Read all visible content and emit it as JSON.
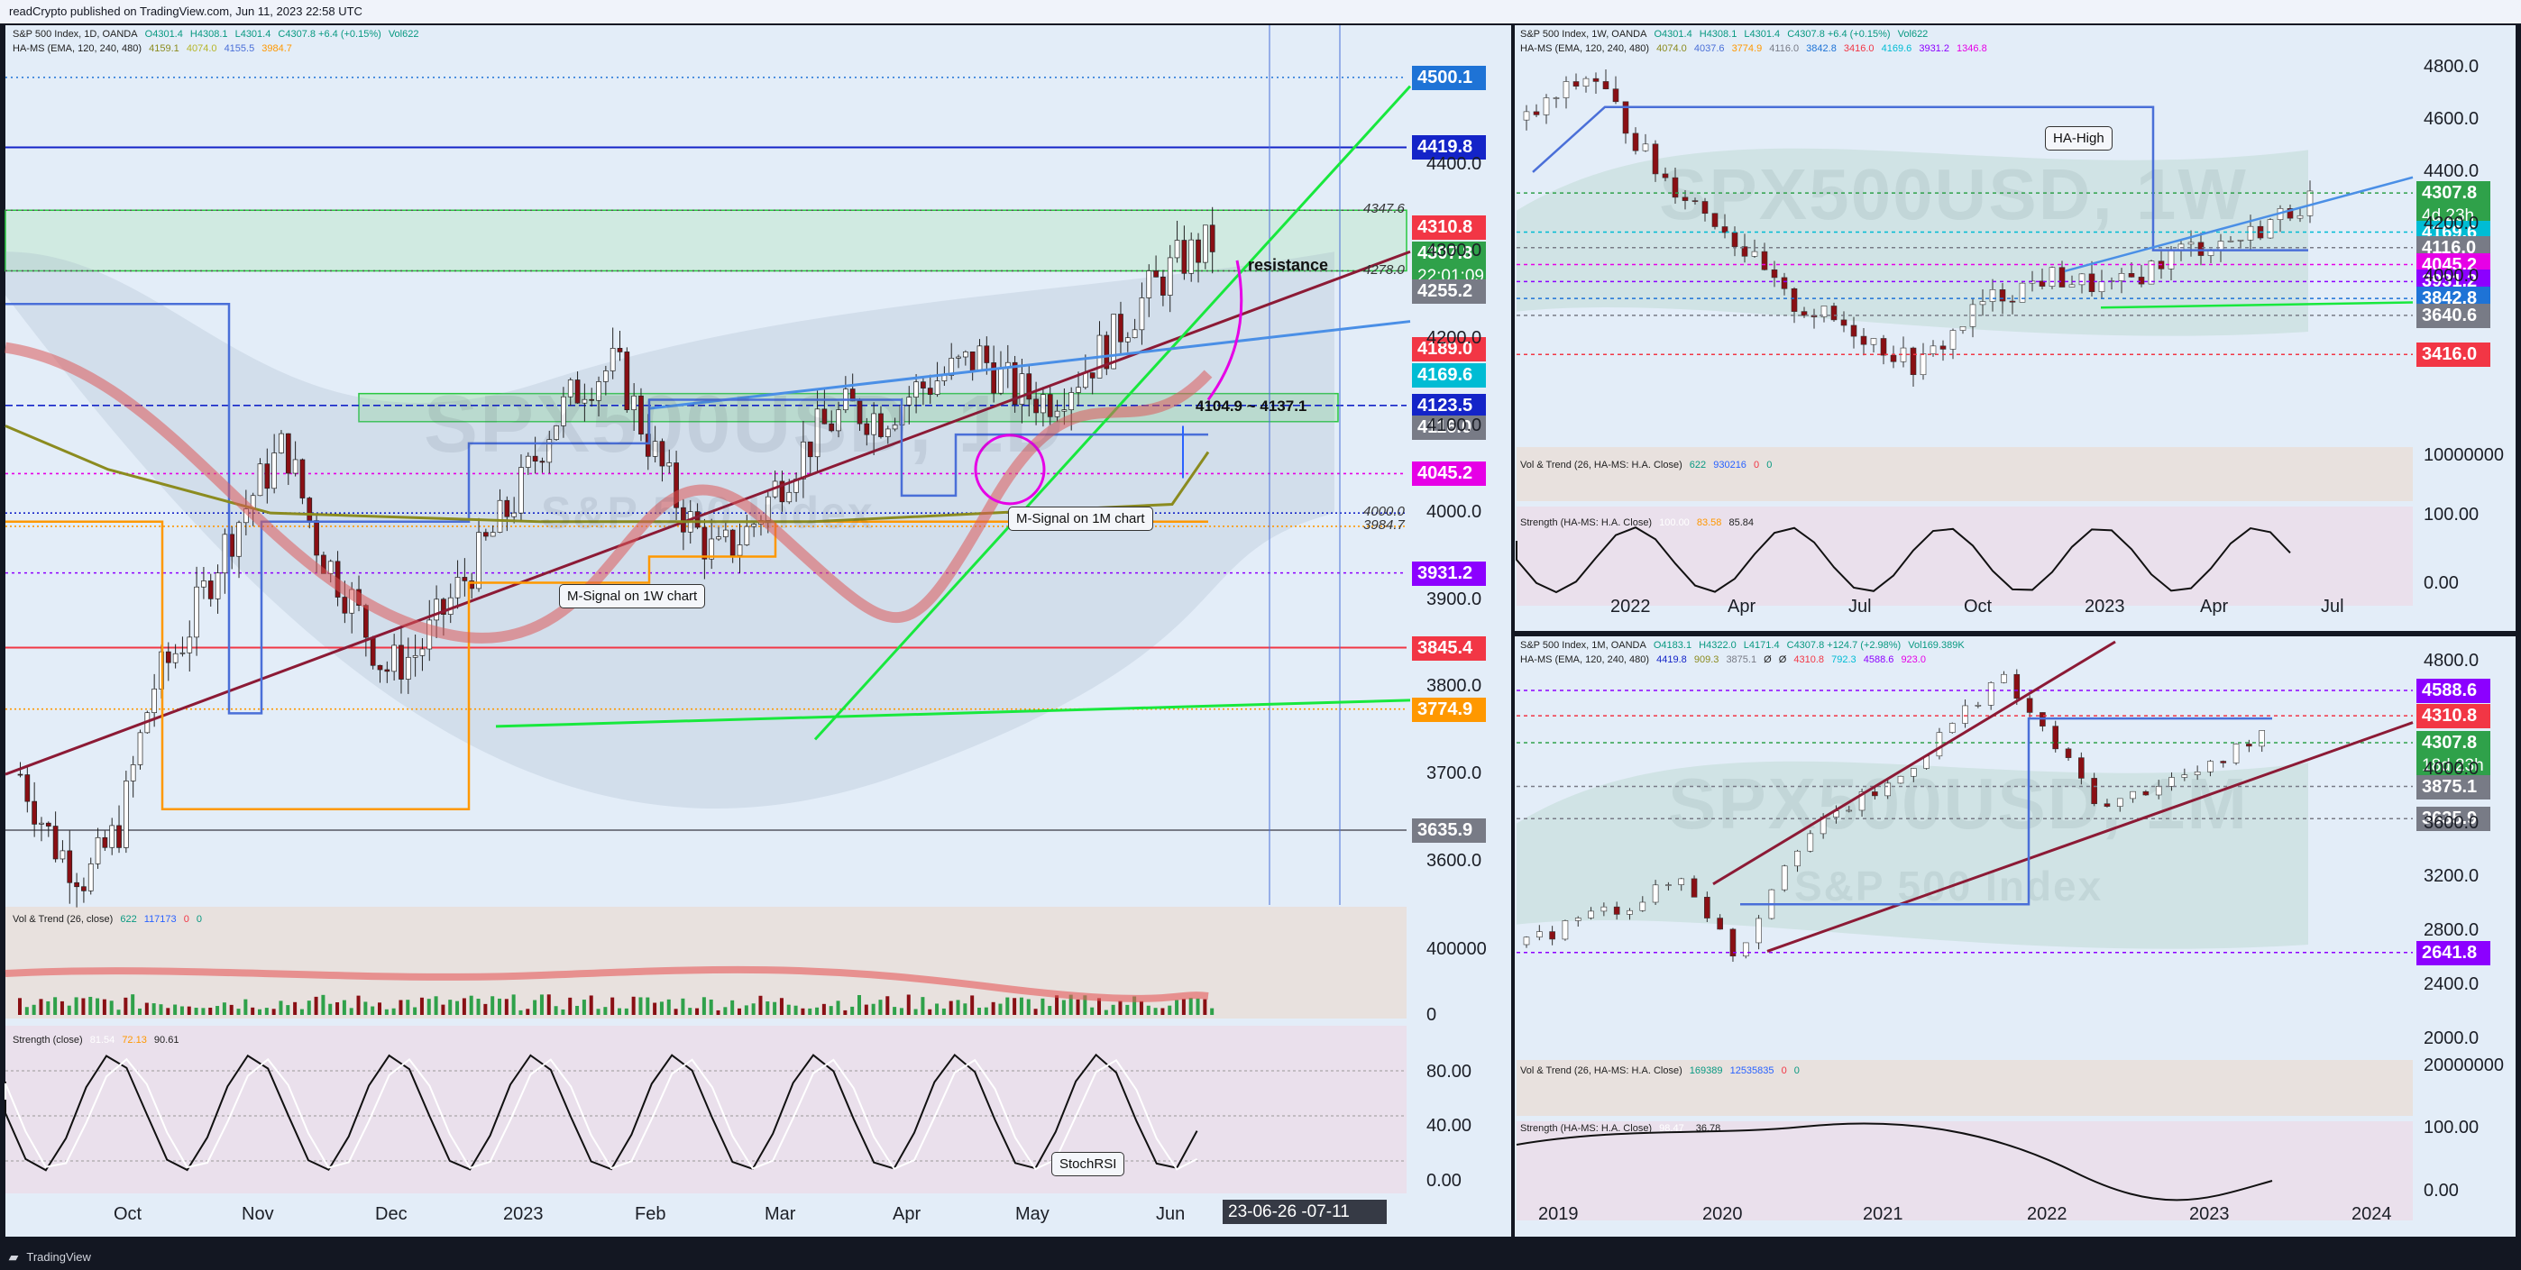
{
  "header": {
    "text": "readCrypto published on TradingView.com, Jun 11, 2023 22:58 UTC"
  },
  "footer": {
    "brand": "TradingView"
  },
  "colors": {
    "bg": "#e3edf8",
    "up": "#ffffff",
    "down": "#8a0f14",
    "green": "#18e83d",
    "maroon": "#8c1a35",
    "blue": "#4a8fe6"
  },
  "chart_data": [
    {
      "type": "candlestick",
      "name": "S&P 500 Index, 1D, OANDA",
      "legend1": [
        "S&P 500 Index, 1D, OANDA",
        "O4301.4",
        "H4308.1",
        "L4301.4",
        "C4307.8 +6.4 (+0.15%)",
        "Vol622"
      ],
      "legend2": [
        "HA-MS (EMA, 120, 240, 480)",
        "4159.1",
        "4074.0",
        "4155.5",
        "3984.7"
      ],
      "watermark": "SPX500USD, 1D",
      "watermark2": "S&P 500 Index",
      "yticks": [
        3600,
        3700,
        3800,
        3900,
        4000,
        4100,
        4200,
        4300,
        4400
      ],
      "ylim": [
        3550,
        4560
      ],
      "xticks": [
        "Oct",
        "Nov",
        "Dec",
        "2023",
        "Feb",
        "Mar",
        "Apr",
        "May",
        "Jun"
      ],
      "x_range_label": "23-06-26   -07-11",
      "price_tags": [
        {
          "v": "4500.1",
          "c": "#1e73d6",
          "y": 4500.1
        },
        {
          "v": "4419.8",
          "c": "#1424c8",
          "y": 4419.8
        },
        {
          "v": "4310.8",
          "c": "#f23645",
          "y": 4328
        },
        {
          "v": "4307.8",
          "c": "#2fa14a",
          "y": 4298,
          "sub": "22:01:09"
        },
        {
          "v": "4255.2",
          "c": "#787b86",
          "y": 4255.2
        },
        {
          "v": "4189.0",
          "c": "#f23645",
          "y": 4189
        },
        {
          "v": "4169.6",
          "c": "#00bcd4",
          "y": 4158
        },
        {
          "v": "4123.5",
          "c": "#1424c8",
          "y": 4123.5
        },
        {
          "v": "4116.0",
          "c": "#787b86",
          "y": 4098
        },
        {
          "v": "4045.2",
          "c": "#e600e6",
          "y": 4045.2
        },
        {
          "v": "3931.2",
          "c": "#8c00ff",
          "y": 3931.2
        },
        {
          "v": "3845.4",
          "c": "#f23645",
          "y": 3845.4
        },
        {
          "v": "3774.9",
          "c": "#ff9800",
          "y": 3774.9
        },
        {
          "v": "3635.9",
          "c": "#787b86",
          "y": 3635.9
        }
      ],
      "levels": [
        {
          "y": 4500.1,
          "c": "#1e73d6",
          "dash": "2,4",
          "label": ""
        },
        {
          "y": 4419.8,
          "c": "#1424c8",
          "dash": "",
          "label": ""
        },
        {
          "y": 4347.6,
          "c": "#555",
          "dash": "2,4",
          "label": "4347.6"
        },
        {
          "y": 4278.0,
          "c": "#555",
          "dash": "2,4",
          "label": "4278.0"
        },
        {
          "y": 4123.5,
          "c": "#1424c8",
          "dash": "8,4",
          "label": ""
        },
        {
          "y": 4045.2,
          "c": "#e600e6",
          "dash": "3,4",
          "label": ""
        },
        {
          "y": 4000.0,
          "c": "#1424c8",
          "dash": "2,3",
          "label": "4000.0"
        },
        {
          "y": 3984.7,
          "c": "#ff9800",
          "dash": "2,3",
          "label": "3984.7"
        },
        {
          "y": 3931.2,
          "c": "#8c00ff",
          "dash": "3,4",
          "label": ""
        },
        {
          "y": 3845.4,
          "c": "#f23645",
          "dash": "",
          "label": ""
        },
        {
          "y": 3774.9,
          "c": "#ff9800",
          "dash": "2,3",
          "label": ""
        },
        {
          "y": 3635.9,
          "c": "#787b86",
          "dash": "",
          "label": ""
        }
      ],
      "annotations": {
        "resistance": "resistance",
        "range": "4104.9 ~ 4137.1",
        "m1w": "M-Signal on 1W chart",
        "m1m": "M-Signal on 1M chart",
        "stoch": "StochRSI"
      },
      "vol_legend": [
        "Vol & Trend (26, close)",
        "622",
        "117173",
        "0",
        "0"
      ],
      "vol_ticks": [
        "400000",
        "0"
      ],
      "strength_legend": [
        "Strength (close)",
        "81.54",
        "72.13",
        "90.61"
      ],
      "strength_ticks": [
        "80.00",
        "40.00",
        "0.00"
      ]
    },
    {
      "type": "candlestick",
      "name": "S&P 500 Index, 1W, OANDA",
      "legend1": [
        "S&P 500 Index, 1W, OANDA",
        "O4301.4",
        "H4308.1",
        "L4301.4",
        "C4307.8 +6.4 (+0.15%)",
        "Vol622"
      ],
      "legend2": [
        "HA-MS (EMA, 120, 240, 480)",
        "4074.0",
        "4037.6",
        "3774.9",
        "4116.0",
        "3842.8",
        "3416.0",
        "4169.6",
        "3931.2",
        "1346.8"
      ],
      "watermark": "SPX500USD, 1W",
      "yticks": [
        4000,
        4200,
        4400,
        4600,
        4800
      ],
      "ylim": [
        3400,
        4950
      ],
      "xticks": [
        "2022",
        "Apr",
        "Jul",
        "Oct",
        "2023",
        "Apr",
        "Jul"
      ],
      "price_tags": [
        {
          "v": "4307.8",
          "c": "#2fa14a",
          "y": 4320,
          "sub": "4d 23h"
        },
        {
          "v": "4169.6",
          "c": "#00bcd4",
          "y": 4169.6
        },
        {
          "v": "4116.0",
          "c": "#787b86",
          "y": 4110
        },
        {
          "v": "4045.2",
          "c": "#e600e6",
          "y": 4045.2
        },
        {
          "v": "3931.2",
          "c": "#8c00ff",
          "y": 3980
        },
        {
          "v": "3842.8",
          "c": "#1e73d6",
          "y": 3915
        },
        {
          "v": "3640.6",
          "c": "#787b86",
          "y": 3850
        },
        {
          "v": "3416.0",
          "c": "#f23645",
          "y": 3700
        }
      ],
      "annotations": {
        "hahigh": "HA-High"
      },
      "vol_legend": [
        "Vol & Trend (26, HA-MS: H.A. Close)",
        "622",
        "930216",
        "0",
        "0"
      ],
      "vol_ticks": [
        "10000000"
      ],
      "strength_legend": [
        "Strength (HA-MS: H.A. Close)",
        "100.00",
        "83.58",
        "85.84"
      ],
      "strength_ticks": [
        "100.00",
        "0.00"
      ]
    },
    {
      "type": "candlestick",
      "name": "S&P 500 Index, 1M, OANDA",
      "legend1": [
        "S&P 500 Index, 1M, OANDA",
        "O4183.1",
        "H4322.0",
        "L4171.4",
        "C4307.8 +124.7 (+2.98%)",
        "Vol169.389K"
      ],
      "legend2": [
        "HA-MS (EMA, 120, 240, 480)",
        "4419.8",
        "909.3",
        "3875.1",
        "Ø",
        "Ø",
        "4310.8",
        "792.3",
        "4588.6",
        "923.0"
      ],
      "watermark": "SPX500USD, 1M",
      "watermark2": "S&P 500 Index",
      "yticks": [
        2000,
        2400,
        2800,
        3200,
        3600,
        4000,
        4800
      ],
      "ylim": [
        1950,
        4950
      ],
      "xticks": [
        "2019",
        "2020",
        "2021",
        "2022",
        "2023",
        "2024"
      ],
      "price_tags": [
        {
          "v": "4588.6",
          "c": "#8c00ff",
          "y": 4588.6
        },
        {
          "v": "4310.8",
          "c": "#f23645",
          "y": 4400
        },
        {
          "v": "4307.8",
          "c": "#2fa14a",
          "y": 4200,
          "sub": "18d 23h"
        },
        {
          "v": "3875.1",
          "c": "#787b86",
          "y": 3875.1
        },
        {
          "v": "3635.9",
          "c": "#787b86",
          "y": 3635.9
        },
        {
          "v": "2641.8",
          "c": "#8c00ff",
          "y": 2641.8
        }
      ],
      "vol_legend": [
        "Vol & Trend (26, HA-MS: H.A. Close)",
        "169389",
        "12535835",
        "0",
        "0"
      ],
      "vol_ticks": [
        "20000000"
      ],
      "strength_legend": [
        "Strength (HA-MS: H.A. Close)",
        "98.47",
        "",
        "36.78"
      ],
      "strength_ticks": [
        "100.00",
        "0.00"
      ]
    }
  ]
}
